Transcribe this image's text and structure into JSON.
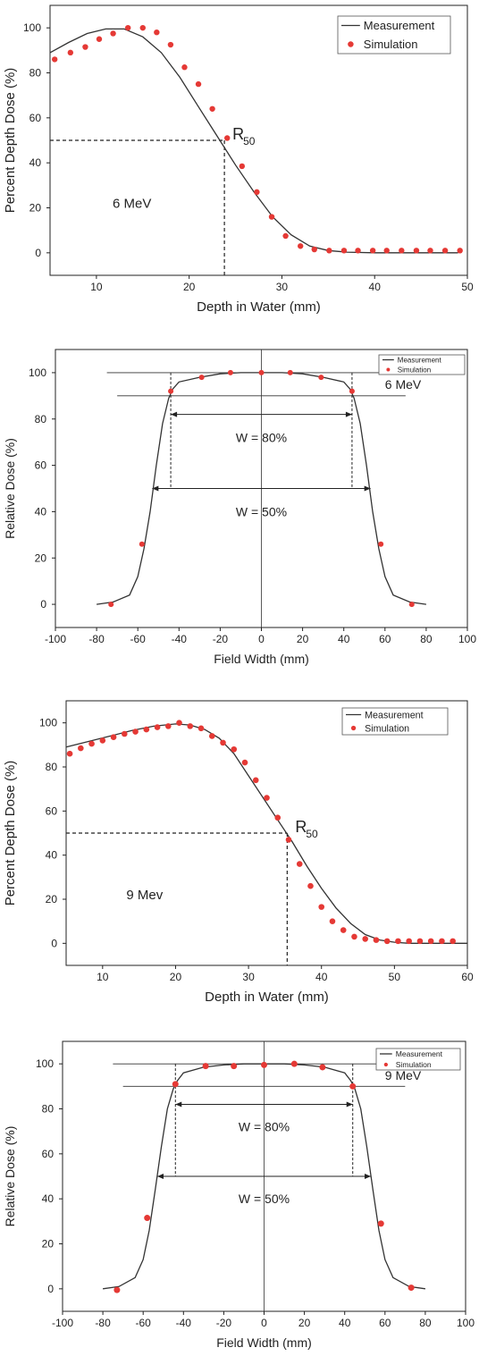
{
  "chart_data": [
    {
      "type": "line",
      "xlabel": "Depth in Water (mm)",
      "ylabel": "Percent Depth Dose (%)",
      "xlim": [
        5,
        50
      ],
      "ylim": [
        -10,
        110
      ],
      "xticks": [
        10,
        20,
        30,
        40,
        50
      ],
      "yticks": [
        0,
        20,
        40,
        60,
        80,
        100
      ],
      "legend": {
        "placement": "top-right",
        "entries": [
          "Measurement",
          "Simulation"
        ]
      },
      "annotations": {
        "energy_label": "6 MeV",
        "r50_label": "R",
        "r50_subscript": "50",
        "r50_depth": 23.8,
        "r50_dose": 50
      },
      "series": [
        {
          "name": "Measurement",
          "kind": "line",
          "color": "#333333",
          "x": [
            5,
            7,
            9,
            11,
            13,
            15,
            17,
            19,
            21,
            23,
            25,
            27,
            29,
            31,
            33,
            35,
            37,
            40,
            43,
            46,
            49
          ],
          "y": [
            89,
            93.5,
            97.5,
            99.5,
            99.5,
            96,
            89,
            78,
            65,
            52,
            39,
            27,
            16,
            8,
            3,
            1,
            0.3,
            0,
            0,
            0,
            0
          ]
        },
        {
          "name": "Simulation",
          "kind": "scatter",
          "color": "#e53935",
          "x": [
            5.5,
            7.2,
            8.8,
            10.3,
            11.8,
            13.4,
            15,
            16.5,
            18,
            19.5,
            21,
            22.5,
            24.1,
            25.7,
            27.3,
            28.9,
            30.4,
            32,
            33.5,
            35.1,
            36.7,
            38.2,
            39.8,
            41.3,
            42.9,
            44.5,
            46,
            47.6,
            49.2
          ],
          "y": [
            86,
            89,
            91.5,
            95,
            97.5,
            100,
            100,
            98,
            92.5,
            82.5,
            75,
            64,
            51,
            38.5,
            27,
            16,
            7.5,
            3,
            1.5,
            1,
            1,
            1,
            1,
            1,
            1,
            1,
            1,
            1,
            1
          ]
        }
      ]
    },
    {
      "type": "line",
      "xlabel": "Field Width (mm)",
      "ylabel": "Relative Dose (%)",
      "xlim": [
        -100,
        100
      ],
      "ylim": [
        -10,
        110
      ],
      "xticks": [
        -100,
        -80,
        -60,
        -40,
        -20,
        0,
        20,
        40,
        60,
        80,
        100
      ],
      "yticks": [
        0,
        20,
        40,
        60,
        80,
        100
      ],
      "legend": {
        "placement": "top-right",
        "entries": [
          "Measurement",
          "Simulation"
        ]
      },
      "annotations": {
        "energy_label": "6 MeV",
        "w80_label": "W = 80%",
        "w50_label": "W = 50%",
        "w80_half_width": 44,
        "w50_half_width": 53
      },
      "series": [
        {
          "name": "Measurement",
          "kind": "line",
          "color": "#333333",
          "x": [
            -80,
            -72,
            -64,
            -60,
            -57,
            -54,
            -51,
            -48,
            -45,
            -43,
            -40,
            -30,
            -20,
            -10,
            0,
            10,
            20,
            30,
            40,
            43,
            45,
            48,
            51,
            54,
            57,
            60,
            64,
            72,
            80
          ],
          "y": [
            0,
            1,
            4,
            12,
            24,
            40,
            60,
            78,
            89,
            93,
            96,
            98,
            99.5,
            100,
            100,
            100,
            99.5,
            98,
            96,
            93,
            89,
            78,
            60,
            40,
            24,
            12,
            4,
            1,
            0
          ]
        },
        {
          "name": "Simulation",
          "kind": "scatter",
          "color": "#e53935",
          "x": [
            -73,
            -58,
            -44,
            -29,
            -15,
            0,
            14,
            29,
            44,
            58,
            73
          ],
          "y": [
            0,
            26,
            92,
            98,
            100,
            100,
            100,
            98,
            92,
            26,
            0
          ]
        }
      ]
    },
    {
      "type": "line",
      "xlabel": "Depth in Water (mm)",
      "ylabel": "Percent Depth Dose (%)",
      "xlim": [
        5,
        60
      ],
      "ylim": [
        -10,
        110
      ],
      "xticks": [
        10,
        20,
        30,
        40,
        50,
        60
      ],
      "yticks": [
        0,
        20,
        40,
        60,
        80,
        100
      ],
      "legend": {
        "placement": "top-right",
        "entries": [
          "Measurement",
          "Simulation"
        ]
      },
      "annotations": {
        "energy_label": "9 Mev",
        "r50_label": "R",
        "r50_subscript": "50",
        "r50_depth": 35.3,
        "r50_dose": 50
      },
      "series": [
        {
          "name": "Measurement",
          "kind": "line",
          "color": "#333333",
          "x": [
            5,
            8,
            11,
            14,
            17,
            20,
            22,
            24,
            26,
            28,
            30,
            32,
            34,
            36,
            38,
            40,
            42,
            44,
            46,
            48,
            50,
            52,
            55,
            60
          ],
          "y": [
            89,
            91.5,
            94,
            96.5,
            98.5,
            99.5,
            99,
            97,
            93,
            86,
            76,
            66,
            56,
            46,
            35,
            25,
            16,
            9,
            4,
            1.5,
            0.5,
            0,
            0,
            0
          ]
        },
        {
          "name": "Simulation",
          "kind": "scatter",
          "color": "#e53935",
          "x": [
            5.5,
            7,
            8.5,
            10,
            11.5,
            13,
            14.5,
            16,
            17.5,
            19,
            20.5,
            22,
            23.5,
            25,
            26.5,
            28,
            29.5,
            31,
            32.5,
            34,
            35.5,
            37,
            38.5,
            40,
            41.5,
            43,
            44.5,
            46,
            47.5,
            49,
            50.5,
            52,
            53.5,
            55,
            56.5,
            58
          ],
          "y": [
            86,
            88.5,
            90.5,
            92,
            93.5,
            95,
            96,
            97,
            98,
            98.5,
            100,
            98.5,
            97.5,
            94,
            91,
            88,
            82,
            74,
            66,
            57,
            47,
            36,
            26,
            16.5,
            10,
            6,
            3,
            2,
            1.5,
            1,
            1,
            1,
            1,
            1,
            1,
            1
          ]
        }
      ]
    },
    {
      "type": "line",
      "xlabel": "Field Width (mm)",
      "ylabel": "Relative Dose (%)",
      "xlim": [
        -100,
        100
      ],
      "ylim": [
        -10,
        110
      ],
      "xticks": [
        -100,
        -80,
        -60,
        -40,
        -20,
        0,
        20,
        40,
        60,
        80,
        100
      ],
      "yticks": [
        0,
        20,
        40,
        60,
        80,
        100
      ],
      "legend": {
        "placement": "top-right",
        "entries": [
          "Measurement",
          "Simulation"
        ]
      },
      "annotations": {
        "energy_label": "9 MeV",
        "w80_label": "W = 80%",
        "w50_label": "W = 50%",
        "w80_half_width": 44,
        "w50_half_width": 53
      },
      "series": [
        {
          "name": "Measurement",
          "kind": "line",
          "color": "#333333",
          "x": [
            -80,
            -72,
            -64,
            -60,
            -57,
            -54,
            -51,
            -48,
            -45,
            -43,
            -40,
            -30,
            -20,
            -10,
            0,
            10,
            20,
            30,
            40,
            43,
            45,
            48,
            51,
            54,
            57,
            60,
            64,
            72,
            80
          ],
          "y": [
            0,
            1,
            5,
            13,
            26,
            44,
            63,
            80,
            89,
            92.5,
            96,
            98.5,
            99.5,
            100,
            100,
            100,
            99.5,
            98.5,
            96,
            92.5,
            89,
            80,
            63,
            44,
            26,
            13,
            5,
            1,
            0
          ]
        },
        {
          "name": "Simulation",
          "kind": "scatter",
          "color": "#e53935",
          "x": [
            -73,
            -58,
            -44,
            -29,
            -15,
            0,
            15,
            29,
            44,
            58,
            73
          ],
          "y": [
            -0.5,
            31.5,
            91,
            99,
            99,
            99.5,
            100,
            98.5,
            90,
            29,
            0.5
          ]
        }
      ]
    }
  ]
}
